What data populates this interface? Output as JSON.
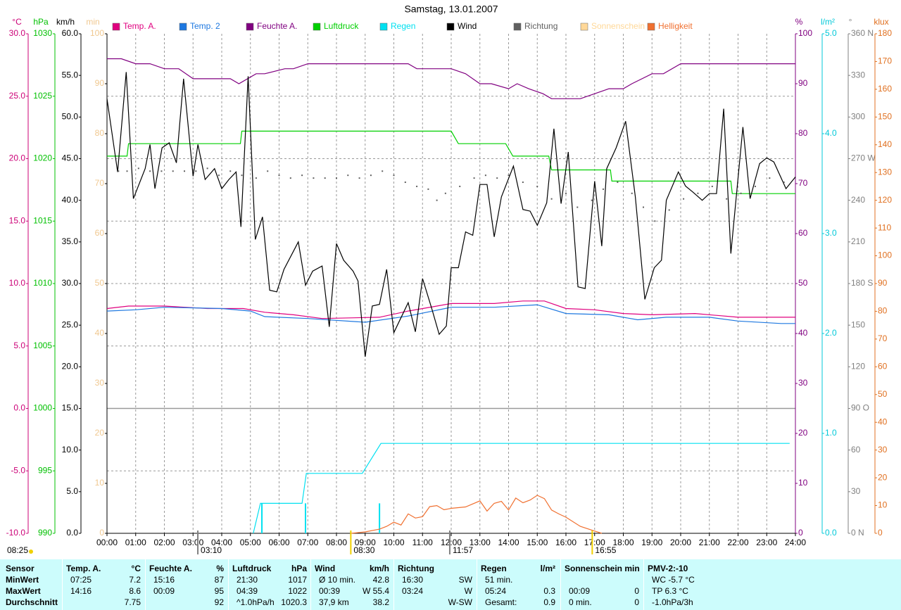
{
  "chart_data": {
    "type": "line",
    "title": "Samstag, 13.01.2007",
    "xlim": [
      0,
      24
    ],
    "xticks": [
      {
        "value": 0,
        "label": "00:00"
      },
      {
        "value": 1,
        "label": "01:00"
      },
      {
        "value": 2,
        "label": "02:00"
      },
      {
        "value": 3,
        "label": "03:00"
      },
      {
        "value": 4,
        "label": "04:00"
      },
      {
        "value": 5,
        "label": "05:00"
      },
      {
        "value": 6,
        "label": "06:00"
      },
      {
        "value": 7,
        "label": "07:00"
      },
      {
        "value": 8,
        "label": "08:00"
      },
      {
        "value": 9,
        "label": "09:00"
      },
      {
        "value": 10,
        "label": "10:00"
      },
      {
        "value": 11,
        "label": "11:00"
      },
      {
        "value": 12,
        "label": "12:00"
      },
      {
        "value": 13,
        "label": "13:00"
      },
      {
        "value": 14,
        "label": "14:00"
      },
      {
        "value": 15,
        "label": "15:00"
      },
      {
        "value": 16,
        "label": "16:00"
      },
      {
        "value": 17,
        "label": "17:00"
      },
      {
        "value": 18,
        "label": "18:00"
      },
      {
        "value": 19,
        "label": "19:00"
      },
      {
        "value": 20,
        "label": "20:00"
      },
      {
        "value": 21,
        "label": "21:00"
      },
      {
        "value": 22,
        "label": "22:00"
      },
      {
        "value": 23,
        "label": "23:00"
      },
      {
        "value": 24,
        "label": "24:00"
      }
    ],
    "grid": true,
    "axes": {
      "temp": {
        "label": "°C",
        "color": "#cc0077",
        "lim": [
          -10,
          30
        ],
        "ticks": [
          {
            "value": 30,
            "label": "30.0"
          },
          {
            "value": 25,
            "label": "25.0"
          },
          {
            "value": 20,
            "label": "20.0"
          },
          {
            "value": 15,
            "label": "15.0"
          },
          {
            "value": 10,
            "label": "10.0"
          },
          {
            "value": 5,
            "label": "5.0"
          },
          {
            "value": 0,
            "label": "0.0"
          },
          {
            "value": -5,
            "label": "-5.0"
          },
          {
            "value": -10,
            "label": "-10.0"
          }
        ]
      },
      "pres": {
        "label": "hPa",
        "color": "#00c000",
        "lim": [
          990,
          1030
        ],
        "ticks": [
          1030,
          1025,
          1020,
          1015,
          1010,
          1005,
          1000,
          995,
          990
        ]
      },
      "wind": {
        "label": "km/h",
        "color": "#000000",
        "lim": [
          0,
          60
        ],
        "ticks": [
          {
            "value": 60,
            "label": "60.0"
          },
          {
            "value": 55,
            "label": "55.0"
          },
          {
            "value": 50,
            "label": "50.0"
          },
          {
            "value": 45,
            "label": "45.0"
          },
          {
            "value": 40,
            "label": "40.0"
          },
          {
            "value": 35,
            "label": "35.0"
          },
          {
            "value": 30,
            "label": "30.0"
          },
          {
            "value": 25,
            "label": "25.0"
          },
          {
            "value": 20,
            "label": "20.0"
          },
          {
            "value": 15,
            "label": "15.0"
          },
          {
            "value": 10,
            "label": "10.0"
          },
          {
            "value": 5,
            "label": "5.0"
          },
          {
            "value": 0,
            "label": "0.0"
          }
        ]
      },
      "min": {
        "label": "min",
        "color": "#f0c890",
        "lim": [
          0,
          100
        ],
        "ticks": [
          100,
          90,
          80,
          70,
          60,
          50,
          40,
          30,
          20,
          10,
          0
        ]
      },
      "hum": {
        "label": "%",
        "color": "#800080",
        "lim": [
          0,
          100
        ],
        "ticks": [
          100,
          90,
          80,
          70,
          60,
          50,
          40,
          30,
          20,
          10,
          0
        ]
      },
      "rain": {
        "label": "l/m²",
        "color": "#00c8d8",
        "lim": [
          0,
          5
        ],
        "ticks": [
          {
            "value": 5,
            "label": "5.0"
          },
          {
            "value": 4,
            "label": "4.0"
          },
          {
            "value": 3,
            "label": "3.0"
          },
          {
            "value": 2,
            "label": "2.0"
          },
          {
            "value": 1,
            "label": "1.0"
          },
          {
            "value": 0,
            "label": "0.0"
          }
        ]
      },
      "dir": {
        "label": "°",
        "color": "#808080",
        "lim": [
          0,
          360
        ],
        "ticks": [
          {
            "value": 360,
            "label": "360 N"
          },
          330,
          300,
          {
            "value": 270,
            "label": "270 W"
          },
          240,
          210,
          {
            "value": 180,
            "label": "180 S"
          },
          150,
          120,
          {
            "value": 90,
            "label": "90 O"
          },
          60,
          30,
          {
            "value": 0,
            "label": "0 N"
          }
        ]
      },
      "lux": {
        "label": "klux",
        "color": "#e07020",
        "lim": [
          0,
          180
        ],
        "ticks": [
          180,
          170,
          160,
          150,
          140,
          130,
          120,
          110,
          100,
          90,
          80,
          70,
          60,
          50,
          40,
          30,
          20,
          10,
          0
        ]
      }
    },
    "series": [
      {
        "name": "Temp. A.",
        "color": "#e0007f",
        "axis": "temp",
        "style": "line",
        "x": [
          0,
          0.75,
          2,
          3.5,
          4.75,
          5.5,
          6.5,
          7.5,
          9.5,
          10.5,
          11.5,
          12,
          13.5,
          14.5,
          15.25,
          16,
          17,
          18,
          19,
          20.5,
          22,
          24
        ],
        "values": [
          8.0,
          8.2,
          8.2,
          8.0,
          8.0,
          7.7,
          7.5,
          7.2,
          7.3,
          7.8,
          8.2,
          8.4,
          8.4,
          8.6,
          8.6,
          8.0,
          7.9,
          7.6,
          7.5,
          7.6,
          7.3,
          7.3
        ]
      },
      {
        "name": "Temp. 2",
        "color": "#1e78e0",
        "axis": "temp",
        "style": "line",
        "x": [
          0,
          1,
          2,
          4,
          5,
          5.5,
          7,
          9,
          10.5,
          12,
          13.5,
          15,
          16,
          17.5,
          18.5,
          19.5,
          21,
          22,
          23.5,
          24
        ],
        "values": [
          7.8,
          7.9,
          8.1,
          8.0,
          7.8,
          7.35,
          7.2,
          6.9,
          7.4,
          8.1,
          8.1,
          8.3,
          7.6,
          7.5,
          7.1,
          7.3,
          7.3,
          7.0,
          6.8,
          6.8
        ]
      },
      {
        "name": "Feuchte A.",
        "color": "#800080",
        "axis": "hum",
        "style": "line",
        "x": [
          0,
          0.5,
          1,
          1.5,
          2,
          2.5,
          3,
          4.3,
          4.6,
          5.2,
          5.5,
          6.2,
          6.5,
          7,
          10.5,
          10.8,
          12,
          12.5,
          13,
          13.4,
          14,
          14.3,
          14.7,
          15.2,
          15.5,
          16.5,
          17,
          17.5,
          18,
          18.3,
          19,
          19.4,
          20,
          24
        ],
        "values": [
          95,
          95,
          94,
          94,
          93,
          93,
          91,
          91,
          90,
          92,
          92,
          93,
          93,
          94,
          94,
          93,
          93,
          92,
          90,
          90,
          89,
          90,
          89,
          88,
          87,
          87,
          88,
          89,
          89,
          90,
          92,
          92,
          94,
          94
        ]
      },
      {
        "name": "Luftdruck",
        "color": "#00d000",
        "axis": "pres",
        "style": "line",
        "x": [
          0,
          0.7,
          0.75,
          4.65,
          4.7,
          12,
          12.25,
          13.9,
          14.15,
          15.4,
          15.5,
          17.55,
          17.6,
          21.75,
          21.8,
          24
        ],
        "values": [
          1020.2,
          1020.2,
          1021.2,
          1021.2,
          1022.2,
          1022.2,
          1021.2,
          1021.2,
          1020.2,
          1020.2,
          1019.1,
          1019.1,
          1018.2,
          1018.2,
          1017.2,
          1017.2
        ]
      },
      {
        "name": "Regen",
        "color": "#00e0f0",
        "axis": "rain",
        "style": "line",
        "x": [
          5.1,
          5.35,
          6.8,
          6.95,
          8.9,
          9.55,
          23.8
        ],
        "values": [
          0,
          0.3,
          0.3,
          0.6,
          0.6,
          0.9,
          0.9
        ]
      },
      {
        "name": "Wind",
        "color": "#000000",
        "axis": "wind",
        "style": "line",
        "x": [
          0,
          0.37,
          0.67,
          0.92,
          1.33,
          1.5,
          1.67,
          1.92,
          2.17,
          2.42,
          2.67,
          3,
          3.17,
          3.42,
          3.75,
          4,
          4.25,
          4.5,
          4.67,
          4.92,
          5.17,
          5.42,
          5.67,
          5.92,
          6.17,
          6.67,
          6.92,
          7.17,
          7.5,
          7.75,
          8,
          8.25,
          8.58,
          8.75,
          9,
          9.25,
          9.5,
          9.75,
          10,
          10.5,
          10.75,
          11,
          11.33,
          11.58,
          11.83,
          12,
          12.25,
          12.5,
          12.75,
          13,
          13.25,
          13.5,
          13.75,
          14.17,
          14.5,
          14.75,
          15,
          15.33,
          15.58,
          15.83,
          16.08,
          16.42,
          16.67,
          17,
          17.25,
          17.42,
          17.75,
          18.08,
          18.42,
          18.75,
          19.08,
          19.33,
          19.5,
          19.92,
          20.17,
          20.42,
          20.75,
          21,
          21.25,
          21.5,
          21.75,
          22.17,
          22.42,
          22.75,
          23,
          23.25,
          23.67,
          24
        ],
        "values": [
          52.2,
          43.4,
          55.4,
          40.2,
          43.8,
          46.7,
          41.4,
          46.3,
          46.9,
          44.5,
          54.6,
          42.9,
          46.7,
          42.5,
          43.8,
          41.4,
          42.5,
          43.4,
          36.8,
          54.9,
          35.3,
          38.0,
          29.2,
          29.0,
          31.7,
          35.0,
          29.8,
          31.5,
          32.1,
          24.8,
          34.8,
          32.8,
          31.5,
          30.3,
          21.2,
          27.3,
          27.5,
          31.7,
          24.1,
          27.7,
          24.2,
          30.6,
          26.9,
          23.9,
          24.9,
          31.9,
          31.9,
          36.2,
          35.8,
          41.9,
          41.9,
          35.6,
          40.4,
          44.1,
          38.9,
          38.7,
          37.0,
          39.7,
          48.6,
          39.6,
          45.8,
          29.6,
          29.4,
          42.3,
          34.5,
          43.8,
          46.3,
          49.5,
          40.4,
          28.1,
          31.9,
          32.8,
          40.0,
          43.4,
          41.7,
          41.0,
          40.0,
          40.8,
          40.8,
          51.0,
          33.6,
          48.8,
          40.2,
          44.4,
          45.1,
          44.6,
          41.4,
          42.8
        ]
      },
      {
        "name": "Richtung",
        "color": "#606060",
        "axis": "dir",
        "style": "dots",
        "x": [
          0.4,
          0.7,
          1.1,
          1.5,
          1.9,
          2.3,
          2.7,
          3.1,
          3.5,
          3.9,
          4.3,
          4.7,
          5.2,
          5.6,
          6.0,
          6.4,
          6.8,
          7.2,
          7.6,
          8.0,
          8.4,
          8.8,
          9.2,
          9.6,
          10.0,
          10.4,
          10.8,
          11.2,
          11.5,
          11.8,
          12.3,
          12.8,
          13.2,
          13.6,
          14.0,
          14.5,
          15.0,
          15.5,
          16.0,
          16.4,
          16.9,
          17.3,
          17.8,
          18.3,
          18.7,
          19.1,
          19.6,
          20.1,
          20.6,
          21.1,
          21.6,
          22.1,
          22.6,
          23.1,
          23.6
        ],
        "values": [
          261,
          261,
          263,
          261,
          261,
          261,
          261,
          261,
          263,
          258,
          261,
          258,
          256,
          261,
          258,
          256,
          258,
          256,
          256,
          256,
          258,
          256,
          258,
          261,
          258,
          253,
          250,
          248,
          240,
          245,
          250,
          256,
          258,
          256,
          258,
          253,
          250,
          241,
          245,
          235,
          240,
          248,
          253,
          245,
          235,
          225,
          233,
          241,
          245,
          250,
          241,
          245,
          250,
          256,
          253
        ]
      },
      {
        "name": "Sonnenschein",
        "color": "#ffd898",
        "axis": "min",
        "style": "line",
        "x": [],
        "values": []
      },
      {
        "name": "Helligkeit",
        "color": "#f07030",
        "axis": "lux",
        "style": "line",
        "x": [
          8.5,
          9,
          9.5,
          9.75,
          10,
          10.25,
          10.5,
          10.75,
          11,
          11.25,
          11.5,
          11.75,
          12,
          12.5,
          13,
          13.25,
          13.5,
          13.75,
          14,
          14.25,
          14.5,
          14.75,
          15,
          15.25,
          15.5,
          15.75,
          16,
          16.5,
          17,
          17.25
        ],
        "values": [
          0,
          0.5,
          1.5,
          2.5,
          4,
          3,
          7,
          5.5,
          6,
          9.6,
          10,
          8.5,
          9,
          9.5,
          11.7,
          8,
          10.8,
          11.5,
          8.4,
          12.7,
          11,
          12,
          13.7,
          12.5,
          8.4,
          7,
          5.8,
          2.5,
          0.8,
          0
        ]
      }
    ],
    "rain_bars": {
      "color": "#00e0f0",
      "axis": "rain",
      "x": [
        5.4,
        6.92,
        9.5
      ],
      "values": [
        0.3,
        0.3,
        0.3
      ]
    },
    "sunrise": "08:25",
    "markers": [
      {
        "text": "03:10",
        "color": "#808080"
      },
      {
        "text": "08:30",
        "color": "#f0d000"
      },
      {
        "text": "11:57",
        "color": "#808080"
      },
      {
        "text": "16:55",
        "color": "#f0d000"
      }
    ]
  },
  "table": {
    "labels": {
      "sensor": "Sensor",
      "min": "MinWert",
      "max": "MaxWert",
      "avg": "Durchschnitt"
    },
    "columns": [
      {
        "title": "Temp. A.",
        "unit": "°C",
        "min": {
          "left": "07:25",
          "right": "7.2"
        },
        "max": {
          "left": "14:16",
          "right": "8.6"
        },
        "avg": {
          "right": "7.75"
        }
      },
      {
        "title": "Feuchte A.",
        "unit": "%",
        "min": {
          "left": "15:16",
          "right": "87"
        },
        "max": {
          "left": "00:09",
          "right": "95"
        },
        "avg": {
          "right": "92"
        }
      },
      {
        "title": "Luftdruck",
        "unit": "hPa",
        "min": {
          "left": "21:30",
          "right": "1017"
        },
        "max": {
          "left": "04:39",
          "right": "1022"
        },
        "avg": {
          "left": "^1.0hPa/h",
          "right": "1020.3"
        }
      },
      {
        "title": "Wind",
        "unit": "km/h",
        "min": {
          "left": "Ø 10 min.",
          "right": "42.8"
        },
        "max": {
          "left": "00:39",
          "right": "W 55.4"
        },
        "avg": {
          "left": "37,9 km",
          "right": "38.2"
        }
      },
      {
        "title": "Richtung",
        "min": {
          "left": "16:30",
          "right": "SW"
        },
        "max": {
          "left": "03:24",
          "right": "W"
        },
        "avg": {
          "right": "W-SW"
        }
      },
      {
        "title": "Regen",
        "unit": "l/m²",
        "min": {
          "left": "51 min."
        },
        "max": {
          "left": "05:24",
          "right": "0.3"
        },
        "avg": {
          "left": "Gesamt:",
          "right": "0.9"
        }
      },
      {
        "title": "Sonnenschein min",
        "min": {},
        "max": {
          "left": "00:09",
          "right": "0"
        },
        "avg": {
          "left": "0 min.",
          "right": "0"
        }
      },
      {
        "title": "PMV-2:-10",
        "min": {
          "left": "WC -5.7 °C"
        },
        "max": {
          "left": "TP 6.3 °C"
        },
        "avg": {
          "left": "-1.0hPa/3h"
        }
      }
    ]
  }
}
